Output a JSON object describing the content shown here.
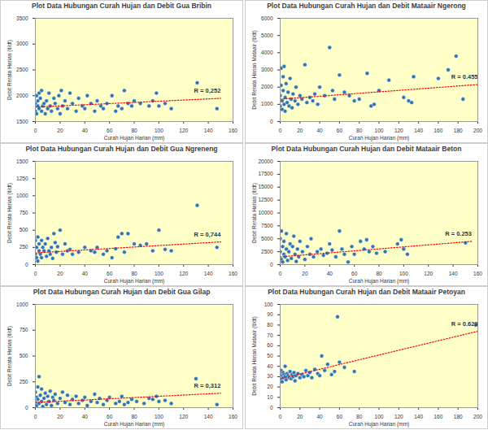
{
  "chart_data": [
    {
      "type": "scatter",
      "title": "Plot Data Hubungan Curah Hujan dan Debit Gua Bribin",
      "x_label": "Curah Hujan Harian (mm)",
      "y_label": "Debit Rerata Harian (lt/dt)",
      "x": [
        0,
        0,
        1,
        1,
        2,
        2,
        3,
        3,
        4,
        5,
        5,
        6,
        7,
        8,
        9,
        10,
        11,
        12,
        13,
        15,
        16,
        18,
        19,
        20,
        21,
        22,
        24,
        26,
        28,
        30,
        33,
        35,
        38,
        40,
        42,
        45,
        48,
        50,
        53,
        55,
        58,
        62,
        65,
        67,
        70,
        72,
        75,
        78,
        80,
        85,
        92,
        95,
        98,
        100,
        105,
        110,
        131,
        147
      ],
      "values": [
        1850,
        1700,
        2000,
        1650,
        1800,
        1900,
        1750,
        2050,
        1950,
        2100,
        1700,
        1800,
        1850,
        1650,
        1900,
        1750,
        2050,
        1800,
        1700,
        1950,
        1850,
        1750,
        2000,
        1650,
        2100,
        1800,
        1900,
        1750,
        2050,
        1850,
        1700,
        1950,
        1800,
        1750,
        2000,
        1850,
        1700,
        1900,
        1800,
        1750,
        1850,
        2000,
        1700,
        1800,
        1750,
        2100,
        1850,
        1800,
        1900,
        1850,
        1800,
        1900,
        2050,
        1800,
        1850,
        1750,
        2250,
        1750
      ],
      "color": "#2e75b6",
      "marker": "circle",
      "trendline": {
        "x": [
          0,
          150
        ],
        "values": [
          1780,
          1950
        ],
        "color": "#ff0000",
        "line_style": "dotted"
      },
      "annotation": "R = 0,252",
      "xlim": [
        0,
        160
      ],
      "xticks": [
        0,
        20,
        40,
        60,
        80,
        100,
        120,
        140,
        160
      ],
      "ylim": [
        1500,
        3500
      ],
      "yticks": [
        1500,
        2000,
        2500,
        3000,
        3500
      ],
      "grid": false
    },
    {
      "type": "scatter",
      "title": "Plot Data Hubungan Curah Hujan dan Debit Mataair Ngerong",
      "x_label": "Curah Hujan Harian (mm)",
      "y_label": "Debit Rerata Harian Mataair (lt/dt)",
      "x": [
        0,
        0,
        1,
        1,
        2,
        2,
        3,
        3,
        4,
        4,
        5,
        5,
        6,
        7,
        8,
        9,
        10,
        11,
        12,
        13,
        15,
        16,
        18,
        20,
        22,
        25,
        27,
        30,
        33,
        35,
        38,
        40,
        45,
        50,
        53,
        55,
        60,
        65,
        70,
        75,
        80,
        88,
        92,
        95,
        100,
        110,
        125,
        130,
        133,
        135,
        160,
        170,
        178,
        185
      ],
      "values": [
        1500,
        900,
        2100,
        3100,
        1200,
        700,
        2600,
        1800,
        1000,
        3200,
        1400,
        600,
        2200,
        1100,
        1700,
        900,
        2500,
        1300,
        800,
        1600,
        1200,
        2000,
        1000,
        1500,
        1300,
        3300,
        1100,
        1400,
        1200,
        1600,
        1000,
        2000,
        1500,
        4300,
        1800,
        1300,
        2700,
        1700,
        1500,
        1200,
        1300,
        2800,
        900,
        1000,
        1800,
        2400,
        1400,
        1200,
        1100,
        2600,
        2500,
        3000,
        3800,
        1300
      ],
      "color": "#2e75b6",
      "marker": "circle",
      "trendline": {
        "x": [
          0,
          200
        ],
        "values": [
          1300,
          2150
        ],
        "color": "#ff0000",
        "line_style": "dotted"
      },
      "annotation": "R = 0.455",
      "xlim": [
        0,
        200
      ],
      "xticks": [
        0,
        20,
        40,
        60,
        80,
        100,
        120,
        140,
        160,
        180,
        200
      ],
      "ylim": [
        0,
        6000
      ],
      "yticks": [
        0,
        1000,
        2000,
        3000,
        4000,
        5000,
        6000
      ],
      "grid": false
    },
    {
      "type": "scatter",
      "title": "Plot Data Hubungan Curah Hujan dan Debit Gua Ngreneng",
      "x_label": "Curah Hujan Harian (mm)",
      "y_label": "Debit Rerata Harian (lt/dt)",
      "x": [
        0,
        0,
        1,
        1,
        2,
        2,
        3,
        3,
        4,
        5,
        5,
        6,
        7,
        8,
        9,
        10,
        11,
        12,
        13,
        14,
        15,
        16,
        17,
        18,
        20,
        22,
        24,
        26,
        28,
        30,
        35,
        40,
        45,
        48,
        50,
        55,
        58,
        62,
        65,
        67,
        70,
        72,
        75,
        80,
        85,
        90,
        95,
        100,
        105,
        110,
        131,
        147
      ],
      "values": [
        150,
        350,
        100,
        250,
        400,
        50,
        200,
        300,
        150,
        350,
        100,
        250,
        200,
        300,
        120,
        380,
        200,
        150,
        250,
        90,
        450,
        320,
        180,
        260,
        500,
        150,
        300,
        200,
        220,
        150,
        180,
        250,
        200,
        180,
        250,
        150,
        200,
        100,
        230,
        400,
        450,
        180,
        450,
        300,
        280,
        300,
        200,
        500,
        220,
        200,
        860,
        250
      ],
      "color": "#2e75b6",
      "marker": "circle",
      "trendline": {
        "x": [
          0,
          150
        ],
        "values": [
          170,
          330
        ],
        "color": "#ff0000",
        "line_style": "dotted"
      },
      "annotation": "R = 0,744",
      "xlim": [
        0,
        160
      ],
      "xticks": [
        0,
        20,
        40,
        60,
        80,
        100,
        120,
        140,
        160
      ],
      "ylim": [
        0,
        1500
      ],
      "yticks": [
        0,
        250,
        500,
        750,
        1000,
        1250,
        1500
      ],
      "grid": false
    },
    {
      "type": "scatter",
      "title": "Plot Data Hubungan Curah Hujan dan Debit Mataair Beton",
      "x_label": "Curah Hujan Harian (mm)",
      "y_label": "Debit Rerata Harian (lt/dt)",
      "x": [
        0,
        0,
        1,
        1,
        2,
        2,
        3,
        3,
        4,
        5,
        5,
        6,
        7,
        8,
        9,
        10,
        11,
        12,
        13,
        14,
        15,
        16,
        18,
        20,
        22,
        24,
        25,
        27,
        30,
        33,
        35,
        38,
        40,
        42,
        45,
        48,
        50,
        52,
        55,
        58,
        60,
        65,
        68,
        70,
        72,
        75,
        78,
        85,
        95,
        98,
        100,
        103,
        150
      ],
      "values": [
        2500,
        5000,
        1000,
        6500,
        3500,
        500,
        2000,
        4500,
        1500,
        6000,
        3000,
        800,
        2500,
        4000,
        1200,
        3500,
        5500,
        2000,
        600,
        3000,
        1500,
        4500,
        2500,
        1000,
        3500,
        2000,
        5000,
        1500,
        2500,
        3000,
        1800,
        2200,
        4000,
        2800,
        1500,
        6500,
        3000,
        2000,
        500,
        3500,
        2000,
        4500,
        3000,
        4800,
        2500,
        3500,
        2200,
        2500,
        4000,
        4800,
        3000,
        2000,
        4200
      ],
      "color": "#2e75b6",
      "marker": "circle",
      "trendline": {
        "x": [
          0,
          155
        ],
        "values": [
          1500,
          4500
        ],
        "color": "#ff0000",
        "line_style": "dotted"
      },
      "annotation": "R = 0.253",
      "xlim": [
        0,
        160
      ],
      "xticks": [
        0,
        20,
        40,
        60,
        80,
        100,
        120,
        140,
        160
      ],
      "ylim": [
        0,
        20000
      ],
      "yticks": [
        0,
        2500,
        5000,
        7500,
        10000,
        12500,
        15000,
        17500,
        20000
      ],
      "grid": false
    },
    {
      "type": "scatter",
      "title": "Plot Data Hubungan Curah Hujan dan Debit Gua Gilap",
      "x_label": "Curah Hujan Harian (mm)",
      "y_label": "Debit Rerata Harian (lt/dt)",
      "x": [
        0,
        0,
        1,
        1,
        2,
        2,
        3,
        3,
        4,
        5,
        5,
        6,
        7,
        8,
        9,
        10,
        11,
        12,
        13,
        14,
        15,
        16,
        18,
        20,
        22,
        24,
        26,
        28,
        30,
        33,
        35,
        38,
        40,
        42,
        45,
        48,
        50,
        52,
        55,
        58,
        60,
        65,
        68,
        70,
        72,
        75,
        78,
        82,
        88,
        92,
        95,
        98,
        100,
        105,
        110,
        130,
        147
      ],
      "values": [
        50,
        150,
        100,
        20,
        200,
        80,
        300,
        40,
        120,
        60,
        180,
        10,
        90,
        140,
        30,
        110,
        60,
        160,
        20,
        100,
        70,
        130,
        40,
        90,
        150,
        50,
        120,
        30,
        80,
        110,
        40,
        70,
        100,
        20,
        60,
        130,
        50,
        90,
        30,
        70,
        100,
        40,
        60,
        110,
        30,
        50,
        80,
        60,
        40,
        90,
        80,
        110,
        60,
        70,
        40,
        280,
        30
      ],
      "color": "#2e75b6",
      "marker": "circle",
      "trendline": {
        "x": [
          0,
          150
        ],
        "values": [
          50,
          140
        ],
        "color": "#ff0000",
        "line_style": "dotted"
      },
      "annotation": "R = 0,312",
      "xlim": [
        0,
        160
      ],
      "xticks": [
        0,
        20,
        40,
        60,
        80,
        100,
        120,
        140,
        160
      ],
      "ylim": [
        0,
        1000
      ],
      "yticks": [
        0,
        250,
        500,
        750,
        1000
      ],
      "grid": false
    },
    {
      "type": "scatter",
      "title": "Plot Data Hubungan Curah Hujan dan Debit Mataair Petoyan",
      "x_label": "Curah Hujan Harian (mm)",
      "y_label": "Debit Rerata Harian Mataair (lt/dt)",
      "x": [
        0,
        0,
        1,
        1,
        2,
        2,
        3,
        3,
        4,
        5,
        5,
        6,
        7,
        8,
        9,
        10,
        11,
        12,
        13,
        14,
        15,
        16,
        18,
        20,
        22,
        24,
        26,
        28,
        30,
        32,
        35,
        38,
        40,
        42,
        45,
        48,
        52,
        55,
        58,
        60,
        65,
        75,
        198
      ],
      "values": [
        30,
        33,
        28,
        36,
        31,
        25,
        34,
        29,
        32,
        30,
        40,
        27,
        33,
        31,
        29,
        35,
        28,
        32,
        30,
        34,
        26,
        31,
        33,
        29,
        32,
        30,
        36,
        31,
        34,
        29,
        37,
        33,
        31,
        50,
        36,
        42,
        32,
        35,
        88,
        44,
        39,
        35,
        80
      ],
      "color": "#2e75b6",
      "marker": "circle",
      "trendline": {
        "x": [
          0,
          200
        ],
        "values": [
          28,
          74
        ],
        "color": "#ff0000",
        "line_style": "dotted"
      },
      "annotation": "R = 0.629",
      "xlim": [
        0,
        200
      ],
      "xticks": [
        0,
        20,
        40,
        60,
        80,
        100,
        120,
        140,
        160,
        180,
        200
      ],
      "ylim": [
        0,
        100
      ],
      "yticks": [
        0,
        10,
        20,
        30,
        40,
        50,
        60,
        70,
        80,
        90,
        100
      ],
      "grid": false
    }
  ]
}
